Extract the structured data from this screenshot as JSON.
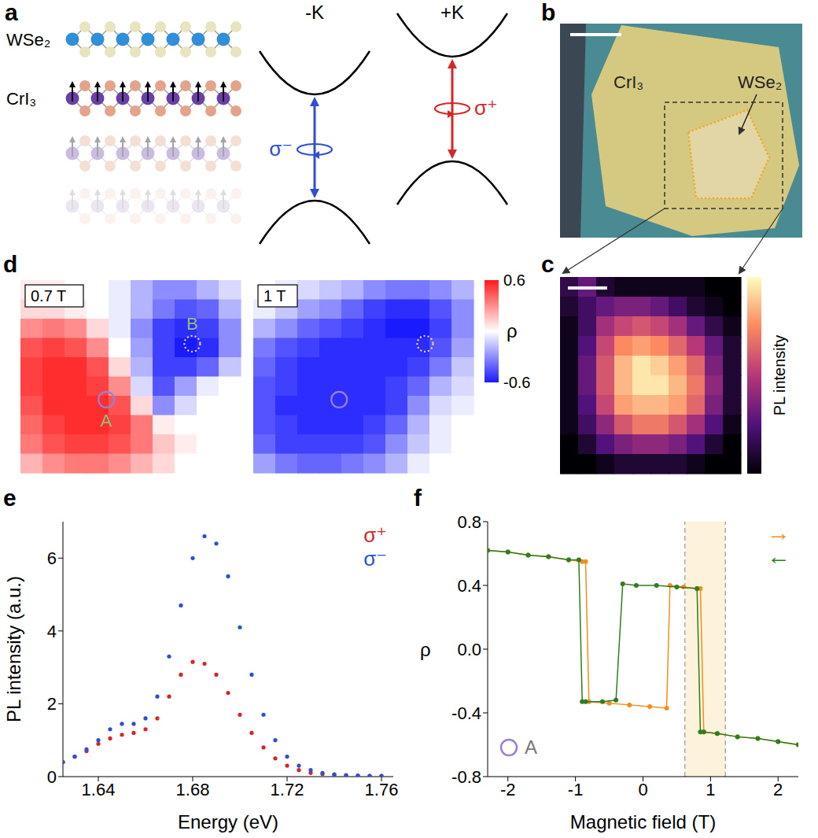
{
  "panels": {
    "a": {
      "label": "a",
      "layers": [
        "WSe₂",
        "CrI₃"
      ],
      "valleys": [
        {
          "name": "-K",
          "light": "σ⁻",
          "color": "#2e4fd4"
        },
        {
          "name": "+K",
          "light": "σ⁺",
          "color": "#d62728"
        }
      ]
    },
    "b": {
      "label": "b",
      "texts": [
        "CrI₃",
        "WSe₂"
      ]
    },
    "c": {
      "label": "c",
      "colorbar_label": "PL intensity",
      "color_range": [
        0,
        1
      ],
      "cells": [
        [
          0.15,
          0.3,
          0.1,
          0.05,
          0.05,
          0.05,
          0.05,
          0.05,
          0.0,
          0.0
        ],
        [
          0.1,
          0.2,
          0.3,
          0.35,
          0.35,
          0.3,
          0.2,
          0.1,
          0.05,
          0.0
        ],
        [
          0.05,
          0.2,
          0.45,
          0.55,
          0.6,
          0.55,
          0.45,
          0.3,
          0.15,
          0.05
        ],
        [
          0.05,
          0.25,
          0.55,
          0.75,
          0.8,
          0.75,
          0.65,
          0.5,
          0.3,
          0.1
        ],
        [
          0.05,
          0.3,
          0.6,
          0.85,
          0.95,
          0.9,
          0.8,
          0.65,
          0.35,
          0.1
        ],
        [
          0.05,
          0.3,
          0.6,
          0.85,
          0.95,
          0.95,
          0.85,
          0.7,
          0.4,
          0.1
        ],
        [
          0.05,
          0.25,
          0.55,
          0.8,
          0.85,
          0.85,
          0.8,
          0.65,
          0.35,
          0.1
        ],
        [
          0.05,
          0.2,
          0.4,
          0.6,
          0.7,
          0.7,
          0.6,
          0.45,
          0.25,
          0.05
        ],
        [
          0.0,
          0.1,
          0.25,
          0.35,
          0.4,
          0.4,
          0.35,
          0.25,
          0.1,
          0.0
        ],
        [
          0.0,
          0.0,
          0.05,
          0.1,
          0.1,
          0.1,
          0.1,
          0.05,
          0.0,
          0.0
        ]
      ]
    },
    "d": {
      "label": "d",
      "colorbar_label": "ρ",
      "color_range": [
        -0.6,
        0.6
      ],
      "color_ticks": [
        0.6,
        -0.6
      ],
      "spots": [
        "A",
        "B"
      ],
      "maps": [
        {
          "title": "0.7 T",
          "cells": [
            [
              0.05,
              0.05,
              0.0,
              0.0,
              -0.05,
              -0.2,
              -0.3,
              -0.3,
              -0.2,
              -0.1
            ],
            [
              0.1,
              0.1,
              0.05,
              0.0,
              -0.05,
              -0.2,
              -0.35,
              -0.45,
              -0.4,
              -0.2
            ],
            [
              0.3,
              0.35,
              0.3,
              0.1,
              -0.05,
              -0.3,
              -0.5,
              -0.55,
              -0.5,
              -0.3
            ],
            [
              0.45,
              0.5,
              0.45,
              0.3,
              0.0,
              -0.25,
              -0.5,
              -0.6,
              -0.55,
              -0.3
            ],
            [
              0.5,
              0.55,
              0.55,
              0.45,
              0.1,
              -0.2,
              -0.5,
              -0.5,
              -0.4,
              -0.15
            ],
            [
              0.5,
              0.55,
              0.55,
              0.5,
              0.3,
              -0.1,
              -0.45,
              -0.25,
              -0.05,
              0.0
            ],
            [
              0.45,
              0.55,
              0.55,
              0.55,
              0.45,
              0.1,
              -0.3,
              -0.1,
              0.0,
              0.0
            ],
            [
              0.4,
              0.5,
              0.55,
              0.55,
              0.5,
              0.35,
              0.05,
              0.0,
              0.0,
              0.0
            ],
            [
              0.35,
              0.45,
              0.5,
              0.5,
              0.45,
              0.35,
              0.15,
              0.05,
              0.0,
              0.0
            ],
            [
              0.2,
              0.3,
              0.35,
              0.35,
              0.3,
              0.2,
              0.1,
              0.0,
              0.0,
              0.0
            ]
          ]
        },
        {
          "title": "1 T",
          "cells": [
            [
              0.0,
              -0.05,
              -0.1,
              -0.15,
              -0.2,
              -0.3,
              -0.35,
              -0.35,
              -0.3,
              -0.2
            ],
            [
              -0.05,
              -0.15,
              -0.25,
              -0.3,
              -0.4,
              -0.5,
              -0.55,
              -0.55,
              -0.45,
              -0.3
            ],
            [
              -0.2,
              -0.3,
              -0.4,
              -0.45,
              -0.5,
              -0.55,
              -0.6,
              -0.6,
              -0.5,
              -0.3
            ],
            [
              -0.35,
              -0.45,
              -0.5,
              -0.55,
              -0.55,
              -0.55,
              -0.55,
              -0.55,
              -0.45,
              -0.25
            ],
            [
              -0.4,
              -0.5,
              -0.55,
              -0.55,
              -0.55,
              -0.55,
              -0.55,
              -0.5,
              -0.35,
              -0.15
            ],
            [
              -0.45,
              -0.5,
              -0.55,
              -0.55,
              -0.55,
              -0.55,
              -0.5,
              -0.4,
              -0.2,
              -0.1
            ],
            [
              -0.45,
              -0.55,
              -0.55,
              -0.55,
              -0.55,
              -0.55,
              -0.5,
              -0.3,
              -0.1,
              -0.05
            ],
            [
              -0.45,
              -0.5,
              -0.55,
              -0.55,
              -0.55,
              -0.5,
              -0.4,
              -0.2,
              -0.05,
              0.0
            ],
            [
              -0.4,
              -0.5,
              -0.5,
              -0.5,
              -0.5,
              -0.45,
              -0.3,
              -0.15,
              -0.05,
              0.0
            ],
            [
              -0.25,
              -0.35,
              -0.4,
              -0.4,
              -0.35,
              -0.3,
              -0.2,
              -0.05,
              0.0,
              0.0
            ]
          ]
        }
      ]
    }
  },
  "chart_data": [
    {
      "label": "e",
      "type": "scatter",
      "x_label": "Energy (eV)",
      "y_label": "PL intensity (a.u.)",
      "x": [
        1.625,
        1.63,
        1.635,
        1.64,
        1.645,
        1.65,
        1.655,
        1.66,
        1.665,
        1.67,
        1.675,
        1.68,
        1.685,
        1.69,
        1.695,
        1.7,
        1.705,
        1.71,
        1.715,
        1.72,
        1.725,
        1.73,
        1.735,
        1.74,
        1.745,
        1.75,
        1.755,
        1.76
      ],
      "series": [
        {
          "name": "σ⁺",
          "color": "#d62728",
          "marker": "circle",
          "values": [
            0.4,
            0.55,
            0.7,
            0.9,
            1.05,
            1.15,
            1.2,
            1.3,
            1.6,
            2.2,
            2.8,
            3.15,
            3.1,
            2.8,
            2.3,
            1.7,
            1.2,
            0.8,
            0.5,
            0.3,
            0.18,
            0.1,
            0.07,
            0.05,
            0.03,
            0.02,
            0.02,
            0.02
          ]
        },
        {
          "name": "σ⁻",
          "color": "#2e4fd4",
          "marker": "circle",
          "values": [
            0.4,
            0.55,
            0.75,
            1.0,
            1.3,
            1.45,
            1.45,
            1.6,
            2.2,
            3.3,
            4.7,
            6.0,
            6.6,
            6.4,
            5.5,
            4.1,
            2.8,
            1.7,
            1.0,
            0.55,
            0.3,
            0.18,
            0.1,
            0.06,
            0.04,
            0.03,
            0.02,
            0.02
          ]
        }
      ],
      "xlim": [
        1.625,
        1.765
      ],
      "ylim": [
        0,
        7
      ],
      "xticks": [
        1.64,
        1.68,
        1.72,
        1.76
      ],
      "yticks": [
        0,
        2,
        4,
        6
      ],
      "legend": "top-right"
    },
    {
      "label": "f",
      "type": "line",
      "x_label": "Magnetic field (T)",
      "y_label": "ρ",
      "series": [
        {
          "name": "→",
          "color": "#f28e1c",
          "marker": "circle",
          "line_style": "solid",
          "x": [
            -2.3,
            -2.0,
            -1.7,
            -1.4,
            -1.1,
            -0.9,
            -0.85,
            -0.8,
            -0.5,
            -0.2,
            0.1,
            0.35,
            0.4,
            0.6,
            0.8,
            0.85,
            0.9,
            1.1,
            1.4,
            1.7,
            2.0,
            2.3
          ],
          "values": [
            0.62,
            0.61,
            0.59,
            0.58,
            0.56,
            0.55,
            0.55,
            -0.33,
            -0.34,
            -0.35,
            -0.36,
            -0.37,
            0.4,
            0.39,
            0.38,
            0.38,
            -0.52,
            -0.53,
            -0.55,
            -0.56,
            -0.58,
            -0.6
          ]
        },
        {
          "name": "←",
          "color": "#2e7d1e",
          "marker": "circle",
          "line_style": "solid",
          "x": [
            2.3,
            2.0,
            1.7,
            1.4,
            1.1,
            0.9,
            0.85,
            0.8,
            0.5,
            0.2,
            -0.1,
            -0.3,
            -0.4,
            -0.6,
            -0.85,
            -0.9,
            -0.95,
            -1.1,
            -1.4,
            -1.7,
            -2.0,
            -2.3
          ],
          "values": [
            -0.6,
            -0.58,
            -0.56,
            -0.55,
            -0.53,
            -0.52,
            -0.52,
            0.38,
            0.39,
            0.4,
            0.4,
            0.41,
            -0.32,
            -0.33,
            -0.33,
            -0.33,
            0.56,
            0.56,
            0.58,
            0.59,
            0.61,
            0.62
          ]
        }
      ],
      "xlim": [
        -2.3,
        2.3
      ],
      "ylim": [
        -0.8,
        0.8
      ],
      "xticks": [
        -2,
        -1,
        0,
        1,
        2
      ],
      "yticks": [
        -0.8,
        -0.4,
        {
          "value": 0,
          "label": "0.0"
        },
        0.4,
        0.8
      ],
      "legend": "top-right",
      "annotation": "A",
      "shaded_range": [
        0.62,
        1.22
      ]
    }
  ]
}
